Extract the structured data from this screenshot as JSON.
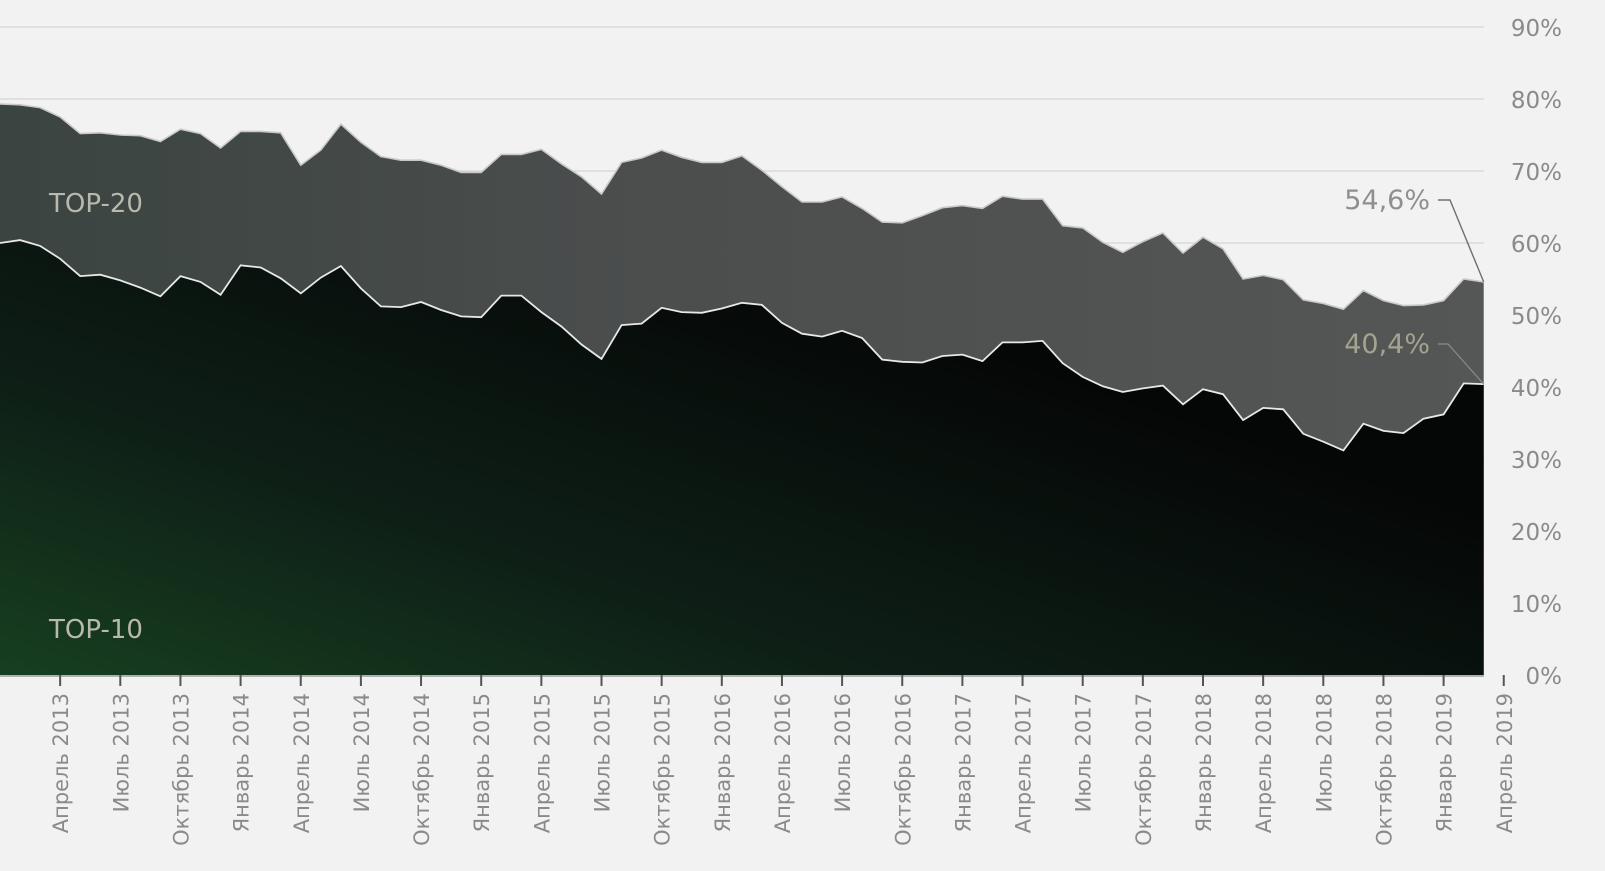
{
  "chart_data": {
    "type": "area",
    "ylim": [
      0,
      90
    ],
    "y_ticks": [
      "0%",
      "10%",
      "20%",
      "30%",
      "40%",
      "50%",
      "60%",
      "70%",
      "80%",
      "90%"
    ],
    "x_tick_labels": [
      "Апрель 2013",
      "Июль 2013",
      "Октябрь 2013",
      "Январь 2014",
      "Апрель 2014",
      "Июль 2014",
      "Октябрь 2014",
      "Январь 2015",
      "Апрель 2015",
      "Июль 2015",
      "Октябрь 2015",
      "Январь 2016",
      "Апрель 2016",
      "Июль 2016",
      "Октябрь 2016",
      "Январь 2017",
      "Апрель 2017",
      "Июль 2017",
      "Октябрь 2017",
      "Январь 2018",
      "Апрель 2018",
      "Июль 2018",
      "Октябрь 2018",
      "Январь 2019",
      "Апрель 2019"
    ],
    "x_start": "Январь 2013",
    "x_step": "месяц",
    "series": [
      {
        "name": "TOP-20",
        "values": [
          79.3,
          79.2,
          78.8,
          77.5,
          75.2,
          75.3,
          75.0,
          74.9,
          74.1,
          75.8,
          75.2,
          73.2,
          75.5,
          75.5,
          75.3,
          70.8,
          72.9,
          76.5,
          74.0,
          72.0,
          71.5,
          71.5,
          70.8,
          69.8,
          69.8,
          72.3,
          72.3,
          73.0,
          71.0,
          69.2,
          66.8,
          71.2,
          71.8,
          72.9,
          71.9,
          71.2,
          71.2,
          72.1,
          70.1,
          67.8,
          65.7,
          65.7,
          66.4,
          64.8,
          62.9,
          62.8,
          63.8,
          64.9,
          65.2,
          64.8,
          66.5,
          66.1,
          66.1,
          62.4,
          62.1,
          60.1,
          58.7,
          60.2,
          61.4,
          58.6,
          60.8,
          59.2,
          55.0,
          55.5,
          54.9,
          52.1,
          51.6,
          50.8,
          53.4,
          52.0,
          51.3,
          51.4,
          52.0,
          55.0,
          54.6
        ],
        "color": "#4d5050"
      },
      {
        "name": "TOP-10",
        "values": [
          60.0,
          60.4,
          59.6,
          57.8,
          55.4,
          55.6,
          54.8,
          53.8,
          52.6,
          55.4,
          54.6,
          52.8,
          56.9,
          56.6,
          55.1,
          53.0,
          55.2,
          56.8,
          53.7,
          51.2,
          51.1,
          51.8,
          50.7,
          49.8,
          49.7,
          52.7,
          52.7,
          50.4,
          48.4,
          45.9,
          43.9,
          48.6,
          48.8,
          51.0,
          50.4,
          50.3,
          50.9,
          51.7,
          51.4,
          48.9,
          47.4,
          47.0,
          47.8,
          46.8,
          43.8,
          43.5,
          43.4,
          44.3,
          44.5,
          43.6,
          46.2,
          46.2,
          46.4,
          43.3,
          41.4,
          40.1,
          39.3,
          39.8,
          40.2,
          37.6,
          39.7,
          39.0,
          35.4,
          37.1,
          36.9,
          33.5,
          32.4,
          31.2,
          34.9,
          33.9,
          33.6,
          35.6,
          36.2,
          40.5,
          40.4
        ],
        "color": "#0b1a12"
      }
    ],
    "annotations": [
      {
        "series": "TOP-20",
        "text": "54,6%"
      },
      {
        "series": "TOP-10",
        "text": "40,4%"
      }
    ],
    "grid": true,
    "y_axis_position": "right"
  }
}
